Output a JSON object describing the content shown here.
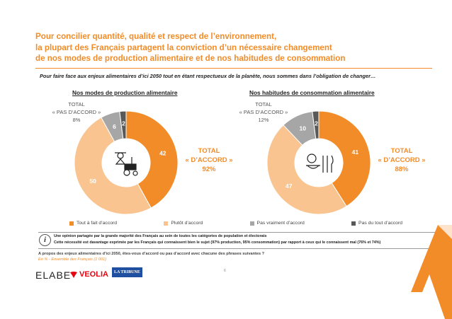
{
  "header": {
    "title_lines": [
      "Pour concilier quantité, qualité et respect de l’environnement,",
      "la plupart des Français partagent la conviction d’un nécessaire changement",
      "de nos modes de production alimentaire et de nos habitudes de consommation"
    ],
    "subtitle": "Pour faire face aux enjeux alimentaires d’ici 2050 tout en étant respectueux de la planète, nous sommes dans l’obligation de changer…"
  },
  "colors": {
    "tout_a_fait": "#f28c28",
    "plutot": "#f9c48f",
    "pas_vraiment": "#a6a6a6",
    "pas_du_tout": "#595959",
    "accent": "#f28c28"
  },
  "chart_data": [
    {
      "type": "pie",
      "variant": "donut",
      "title": "Nos modes de production alimentaire",
      "categories": [
        "Tout à fait d’accord",
        "Plutôt d’accord",
        "Pas vraiment d’accord",
        "Pas du tout d’accord"
      ],
      "values": [
        42,
        50,
        6,
        2
      ],
      "labels": [
        "42",
        "50",
        "6",
        "2"
      ],
      "total_pas_daccord": {
        "lines": [
          "TOTAL",
          "« PAS D’ACCORD »",
          "8%"
        ]
      },
      "total_daccord": {
        "lines": [
          "TOTAL",
          "« D’ACCORD »",
          "92%"
        ]
      },
      "center_icon": "farmer-tractor-icon"
    },
    {
      "type": "pie",
      "variant": "donut",
      "title": "Nos habitudes de consommation alimentaire",
      "categories": [
        "Tout à fait d’accord",
        "Plutôt d’accord",
        "Pas vraiment d’accord",
        "Pas du tout d’accord"
      ],
      "values": [
        41,
        47,
        10,
        2
      ],
      "labels": [
        "41",
        "47",
        "10",
        "2"
      ],
      "total_pas_daccord": {
        "lines": [
          "TOTAL",
          "« PAS D’ACCORD »",
          "12%"
        ]
      },
      "total_daccord": {
        "lines": [
          "TOTAL",
          "« D’ACCORD »",
          "88%"
        ]
      },
      "center_icon": "food-cutlery-icon"
    }
  ],
  "legend": {
    "placement": "bottom",
    "items": [
      "Tout à fait d’accord",
      "Plutôt d’accord",
      "Pas vraiment d’accord",
      "Pas du tout d’accord"
    ]
  },
  "info": {
    "line1": "Une opinion partagée par la grande majorité des Français au sein de toutes les catégories de population et électorats",
    "line2": "Cette nécessité est davantage exprimée par les Français qui connaissent bien le sujet (97% production, 95% consommation) par rapport à ceux qui le connaissent mal (76% et 74%)"
  },
  "footer": {
    "question": "A propos des enjeux alimentaires d’ici 2050, êtes-vous d’accord ou pas d’accord avec chacune des phrases suivantes ?",
    "base": "En % - Ensemble des Français (1 001)",
    "page_number": "6",
    "logos": {
      "elabe": "ELABE",
      "veolia": "VEOLIA",
      "tribune": "LA TRIBUNE"
    }
  }
}
